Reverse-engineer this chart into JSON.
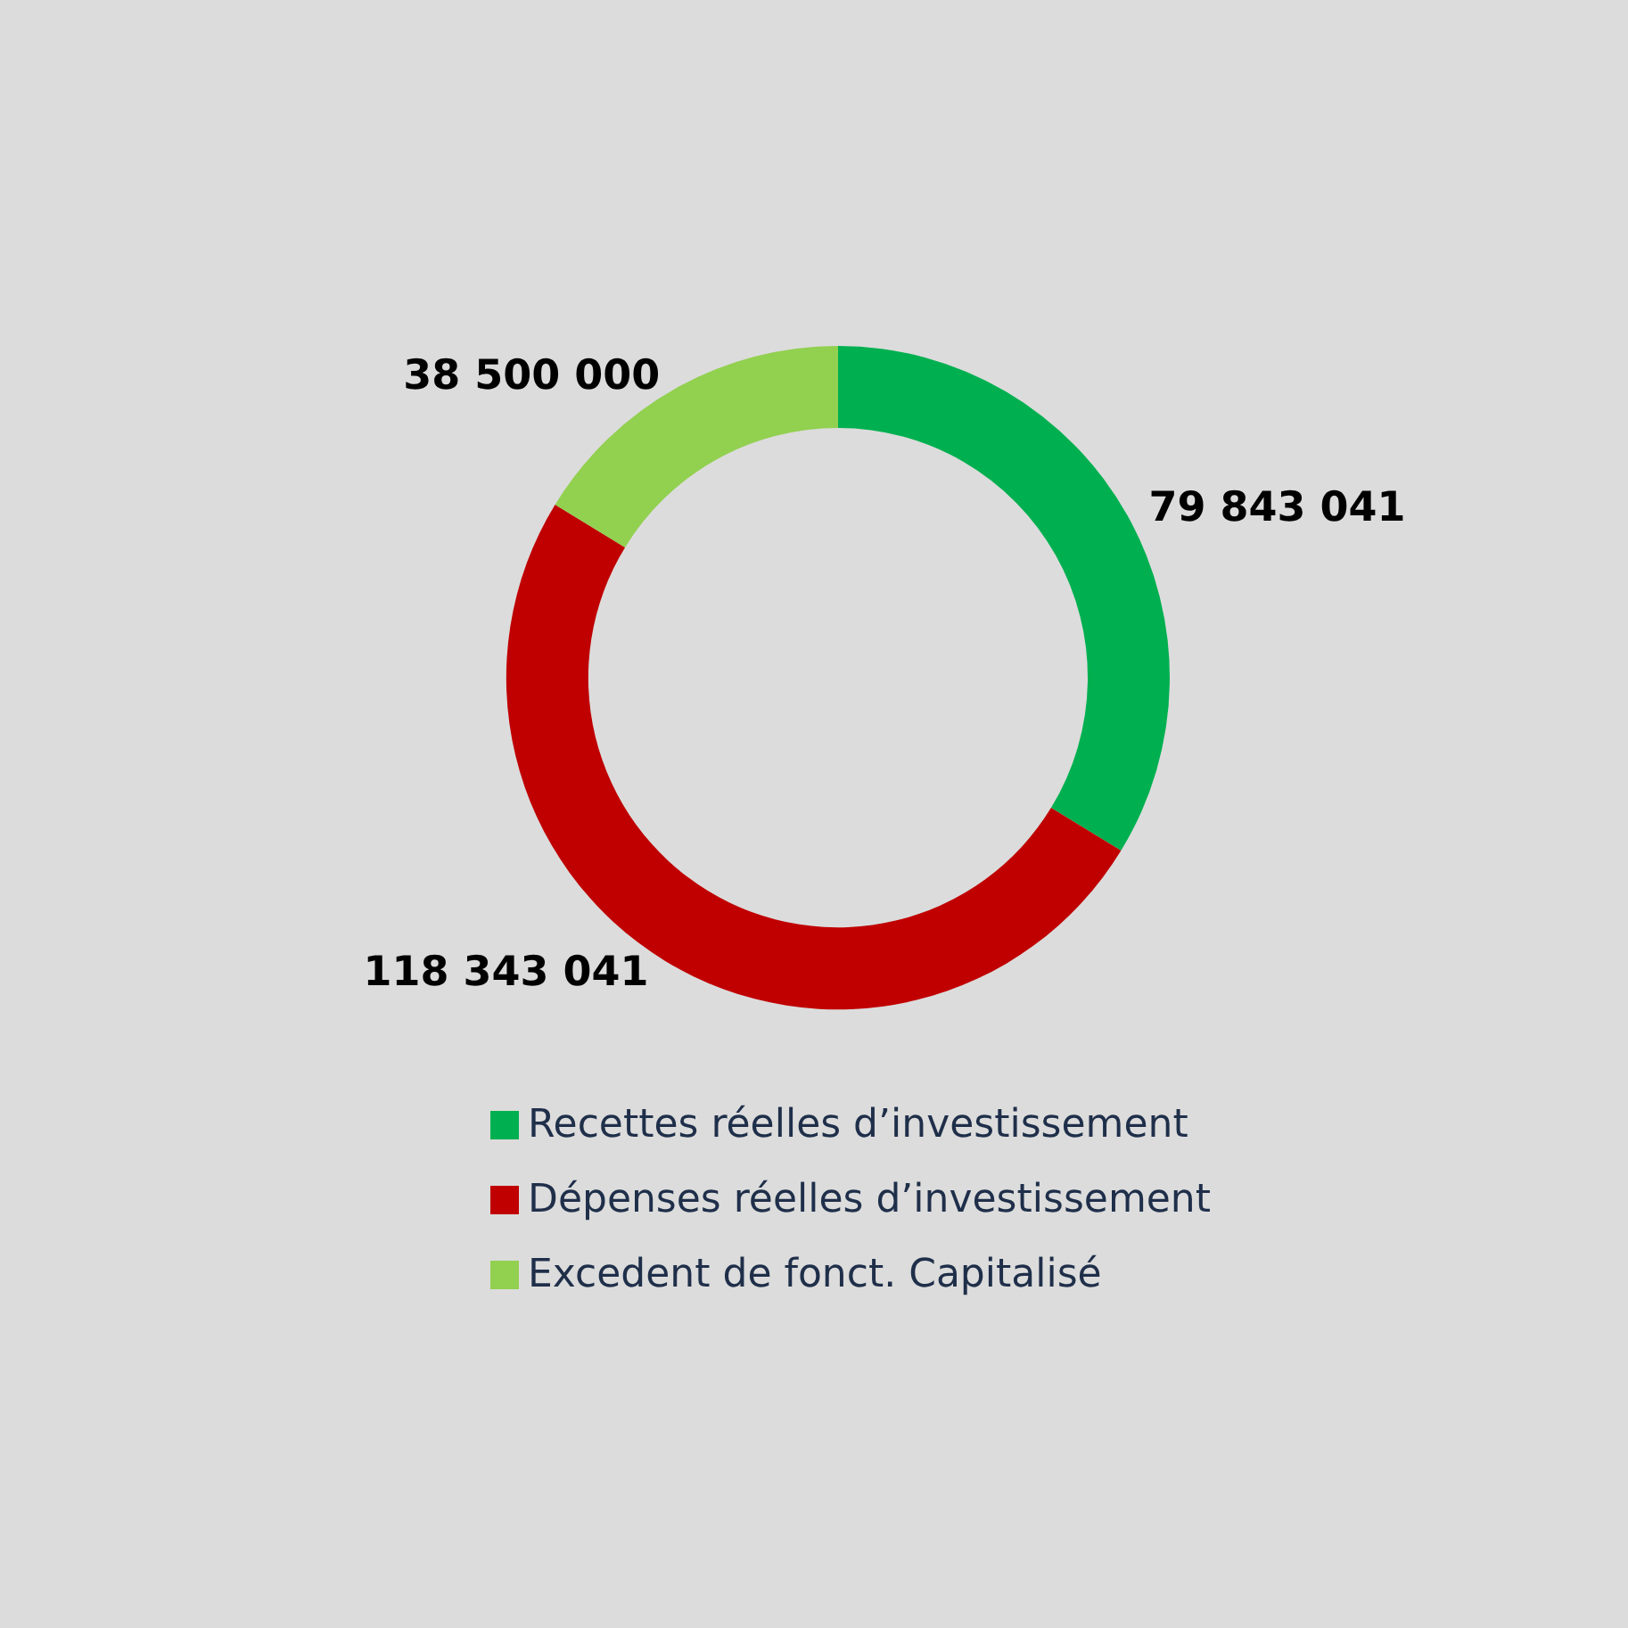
{
  "chart_data": {
    "type": "donut",
    "categories": [
      "Recettes réelles d’investissement",
      "Dépenses réelles d’investissement",
      "Excedent de fonct. Capitalisé"
    ],
    "values": [
      79843041,
      118343041,
      38500000
    ],
    "colors": [
      "#00b050",
      "#c00000",
      "#92d050"
    ],
    "value_labels": [
      "79 843 041",
      "118 343 041",
      "38 500 000"
    ],
    "legend": "bottom"
  }
}
